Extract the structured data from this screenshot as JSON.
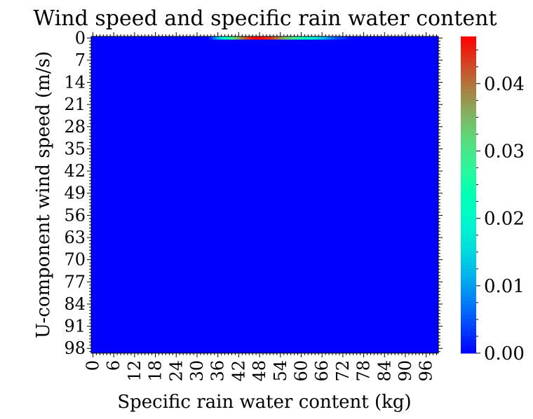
{
  "chart_data": {
    "type": "heatmap",
    "title": "Wind speed and specific rain water content",
    "xlabel": "Specific rain water content (kg)",
    "ylabel": "U-component wind speed (m/s)",
    "x_range": [
      0,
      100
    ],
    "y_range": [
      0,
      100
    ],
    "x_ticks": [
      0,
      6,
      12,
      18,
      24,
      30,
      36,
      42,
      48,
      54,
      60,
      66,
      72,
      78,
      84,
      90,
      96
    ],
    "y_ticks": [
      0,
      7,
      14,
      21,
      28,
      35,
      42,
      49,
      56,
      63,
      70,
      77,
      84,
      91,
      98
    ],
    "colormap": "rainbow",
    "colorbar": {
      "min": 0.0,
      "max": 0.047,
      "ticks": [
        0.0,
        0.01,
        0.02,
        0.03,
        0.04
      ],
      "tick_labels": [
        "0.00",
        "0.01",
        "0.02",
        "0.03",
        "0.04"
      ]
    },
    "background_value": 0.0,
    "nonzero_row": {
      "y": 0,
      "x": [
        34,
        35,
        36,
        37,
        38,
        39,
        40,
        41,
        42,
        43,
        44,
        45,
        46,
        47,
        48,
        49,
        50,
        51,
        52,
        53,
        54,
        55,
        56,
        57,
        58,
        59,
        60,
        61,
        62,
        63,
        64,
        65,
        66,
        67,
        68,
        69,
        70,
        71,
        72,
        73,
        74
      ],
      "values": [
        0.003,
        0.008,
        0.012,
        0.016,
        0.02,
        0.025,
        0.029,
        0.033,
        0.036,
        0.039,
        0.042,
        0.044,
        0.046,
        0.047,
        0.047,
        0.046,
        0.045,
        0.044,
        0.042,
        0.04,
        0.038,
        0.035,
        0.033,
        0.031,
        0.029,
        0.027,
        0.025,
        0.023,
        0.021,
        0.019,
        0.017,
        0.015,
        0.013,
        0.011,
        0.009,
        0.007,
        0.005,
        0.004,
        0.003,
        0.002,
        0.001
      ]
    }
  }
}
